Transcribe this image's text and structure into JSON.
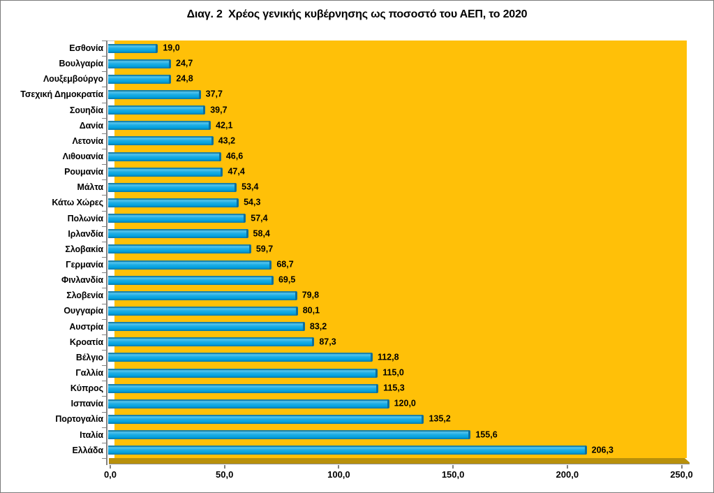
{
  "window": {
    "background": "#ffffff",
    "border_color": "#7a7a7a"
  },
  "chart_data": {
    "type": "bar",
    "orientation": "horizontal",
    "title": "Διαγ. 2  Χρέος γενικής κυβέρνησης ως ποσοστό του ΑΕΠ, το 2020",
    "categories": [
      "Εσθονία",
      "Βουλγαρία",
      "Λουξεμβούργο",
      "Τσεχική Δημοκρατία",
      "Σουηδία",
      "Δανία",
      "Λετονία",
      "Λιθουανία",
      "Ρουμανία",
      "Μάλτα",
      "Κάτω Χώρες",
      "Πολωνία",
      "Ιρλανδία",
      "Σλοβακία",
      "Γερμανία",
      "Φινλανδία",
      "Σλοβενία",
      "Ουγγαρία",
      "Αυστρία",
      "Κροατία",
      "Βέλγιο",
      "Γαλλία",
      "Κύπρος",
      "Ισπανία",
      "Πορτογαλία",
      "Ιταλία",
      "Ελλάδα"
    ],
    "values": [
      19.0,
      24.7,
      24.8,
      37.7,
      39.7,
      42.1,
      43.2,
      46.6,
      47.4,
      53.4,
      54.3,
      57.4,
      58.4,
      59.7,
      68.7,
      69.5,
      79.8,
      80.1,
      83.2,
      87.3,
      112.8,
      115.0,
      115.3,
      120.0,
      135.2,
      155.6,
      206.3
    ],
    "value_labels": [
      "19,0",
      "24,7",
      "24,8",
      "37,7",
      "39,7",
      "42,1",
      "43,2",
      "46,6",
      "47,4",
      "53,4",
      "54,3",
      "57,4",
      "58,4",
      "59,7",
      "68,7",
      "69,5",
      "79,8",
      "80,1",
      "83,2",
      "87,3",
      "112,8",
      "115,0",
      "115,3",
      "120,0",
      "135,2",
      "155,6",
      "206,3"
    ],
    "x_ticks": [
      "0,0",
      "50,0",
      "100,0",
      "150,0",
      "200,0",
      "250,0"
    ],
    "x_tick_values": [
      0,
      50,
      100,
      150,
      200,
      250
    ],
    "xlim": [
      0,
      250
    ],
    "xlabel": "",
    "ylabel": "",
    "grid": false,
    "legend_position": "none",
    "colors": {
      "plot_bg": "#ffc008",
      "bar": "#02a3e0",
      "bar_edge": "#0f6f9c",
      "floor": "#b8900b",
      "wall": "#ffffff",
      "axis": "#828282",
      "text": "#000000"
    }
  }
}
